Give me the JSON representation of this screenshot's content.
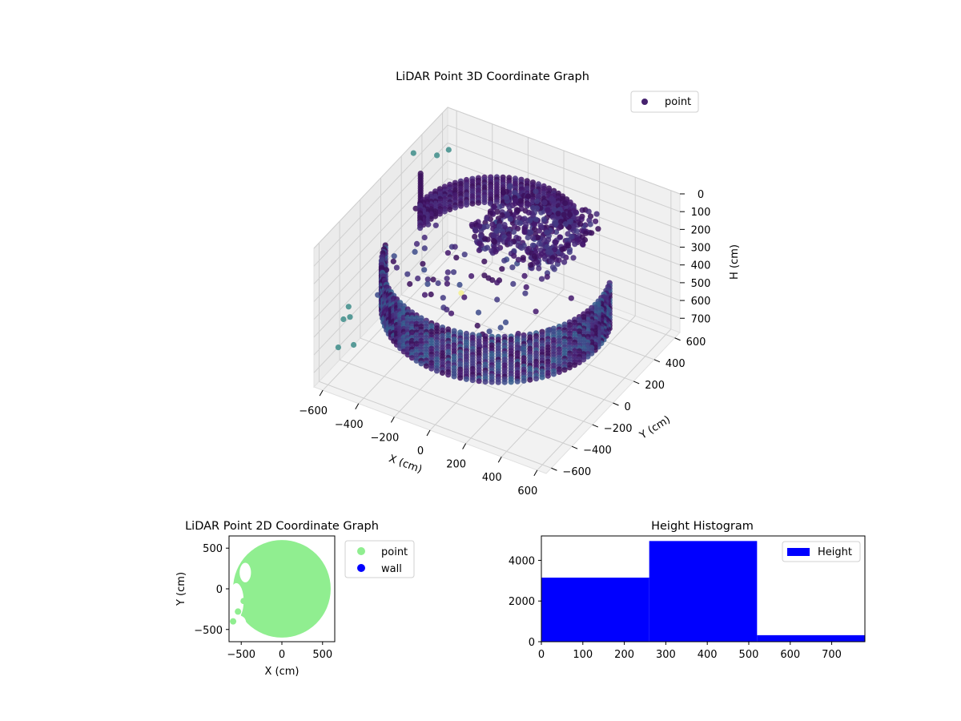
{
  "colors": {
    "point_3d": "#46226e",
    "point_2d": "#90ee90",
    "wall": "#0000ff",
    "histogram": "#0000ff",
    "outlier_teal": "#3e8d8a",
    "outlier_yellow": "#f5f08f"
  },
  "chart_data": [
    {
      "type": "scatter",
      "projection": "3d",
      "title": "LiDAR Point 3D Coordinate Graph",
      "xlabel": "X (cm)",
      "ylabel": "Y (cm)",
      "zlabel": "H (cm)",
      "xlim": [
        -650,
        650
      ],
      "ylim": [
        -650,
        650
      ],
      "zlim": [
        0,
        780
      ],
      "zaxis_inverted": true,
      "xticks": [
        "−600",
        "−400",
        "−200",
        "0",
        "200",
        "400",
        "600"
      ],
      "yticks": [
        "−600",
        "−400",
        "−200",
        "0",
        "200",
        "400",
        "600"
      ],
      "zticks": [
        "0",
        "100",
        "200",
        "300",
        "400",
        "500",
        "600",
        "700"
      ],
      "grid": true,
      "legend": {
        "position": "top-right",
        "entries": [
          "point"
        ]
      },
      "colormap": "viridis (by height)",
      "series": [
        {
          "name": "point",
          "description_values": {
            "wall_arc": {
              "center": [
                0,
                0
              ],
              "radius_cm": 560,
              "angle_range_deg": [
                -165,
                20
              ],
              "height_range_cm": [
                250,
                520
              ]
            },
            "back_ring": {
              "center": [
                0,
                0
              ],
              "radius_cm": 430,
              "angle_range_deg": [
                60,
                180
              ],
              "height_range_cm": [
                60,
                200
              ]
            },
            "inner_cluster": {
              "x_range": [
                -150,
                350
              ],
              "y_range": [
                -50,
                400
              ],
              "height_range_cm": [
                60,
                180
              ]
            }
          }
        }
      ]
    },
    {
      "type": "scatter",
      "title": "LiDAR Point 2D Coordinate Graph",
      "xlabel": "X (cm)",
      "ylabel": "Y (cm)",
      "xlim": [
        -650,
        650
      ],
      "ylim": [
        -650,
        650
      ],
      "xticks": [
        "−500",
        "0",
        "500"
      ],
      "yticks": [
        "500",
        "0",
        "−500"
      ],
      "legend": {
        "position": "outside-right",
        "entries": [
          "point",
          "wall"
        ]
      },
      "series": [
        {
          "name": "point",
          "shape": "filled disk",
          "radius_cm": 600
        },
        {
          "name": "wall",
          "count": 0
        }
      ]
    },
    {
      "type": "bar",
      "title": "Height Histogram",
      "xlabel": "",
      "ylabel": "",
      "bin_edges": [
        0,
        260,
        520,
        780
      ],
      "values": [
        3150,
        4950,
        320
      ],
      "xlim": [
        0,
        780
      ],
      "ylim": [
        0,
        5200
      ],
      "xticks": [
        "0",
        "100",
        "200",
        "300",
        "400",
        "500",
        "600",
        "700"
      ],
      "yticks": [
        "0",
        "2000",
        "4000"
      ],
      "legend": {
        "position": "top-right",
        "entries": [
          "Height"
        ]
      },
      "series": [
        {
          "name": "Height",
          "values": [
            3150,
            4950,
            320
          ]
        }
      ]
    }
  ]
}
